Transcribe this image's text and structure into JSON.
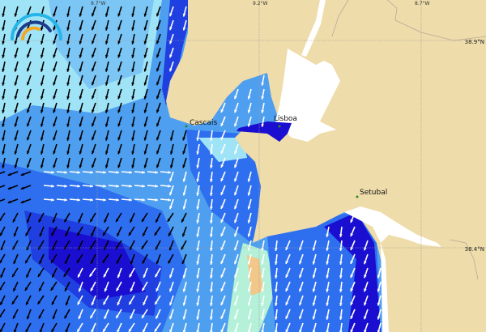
{
  "map": {
    "places": [
      {
        "name": "Cascais"
      },
      {
        "name": "Lisboa"
      },
      {
        "name": "Setubal"
      }
    ],
    "longitude_labels": [
      "9.7°W",
      "9.2°W",
      "8.7°W"
    ],
    "latitude_labels": [
      "38.9°N",
      "38.4°N"
    ],
    "colors": {
      "land": "#eedcaa",
      "estuary": "#ffffff",
      "sea_light": "#9fe3f7",
      "sea_mid": "#4f9ff0",
      "sea_deep": "#1f3fe0",
      "sea_darkest": "#1a0fd0",
      "arrow_offshore": "#000000",
      "arrow_nearshore": "#ffffff",
      "hotspot": "#f2c88a"
    },
    "logo": "wave-logo"
  }
}
